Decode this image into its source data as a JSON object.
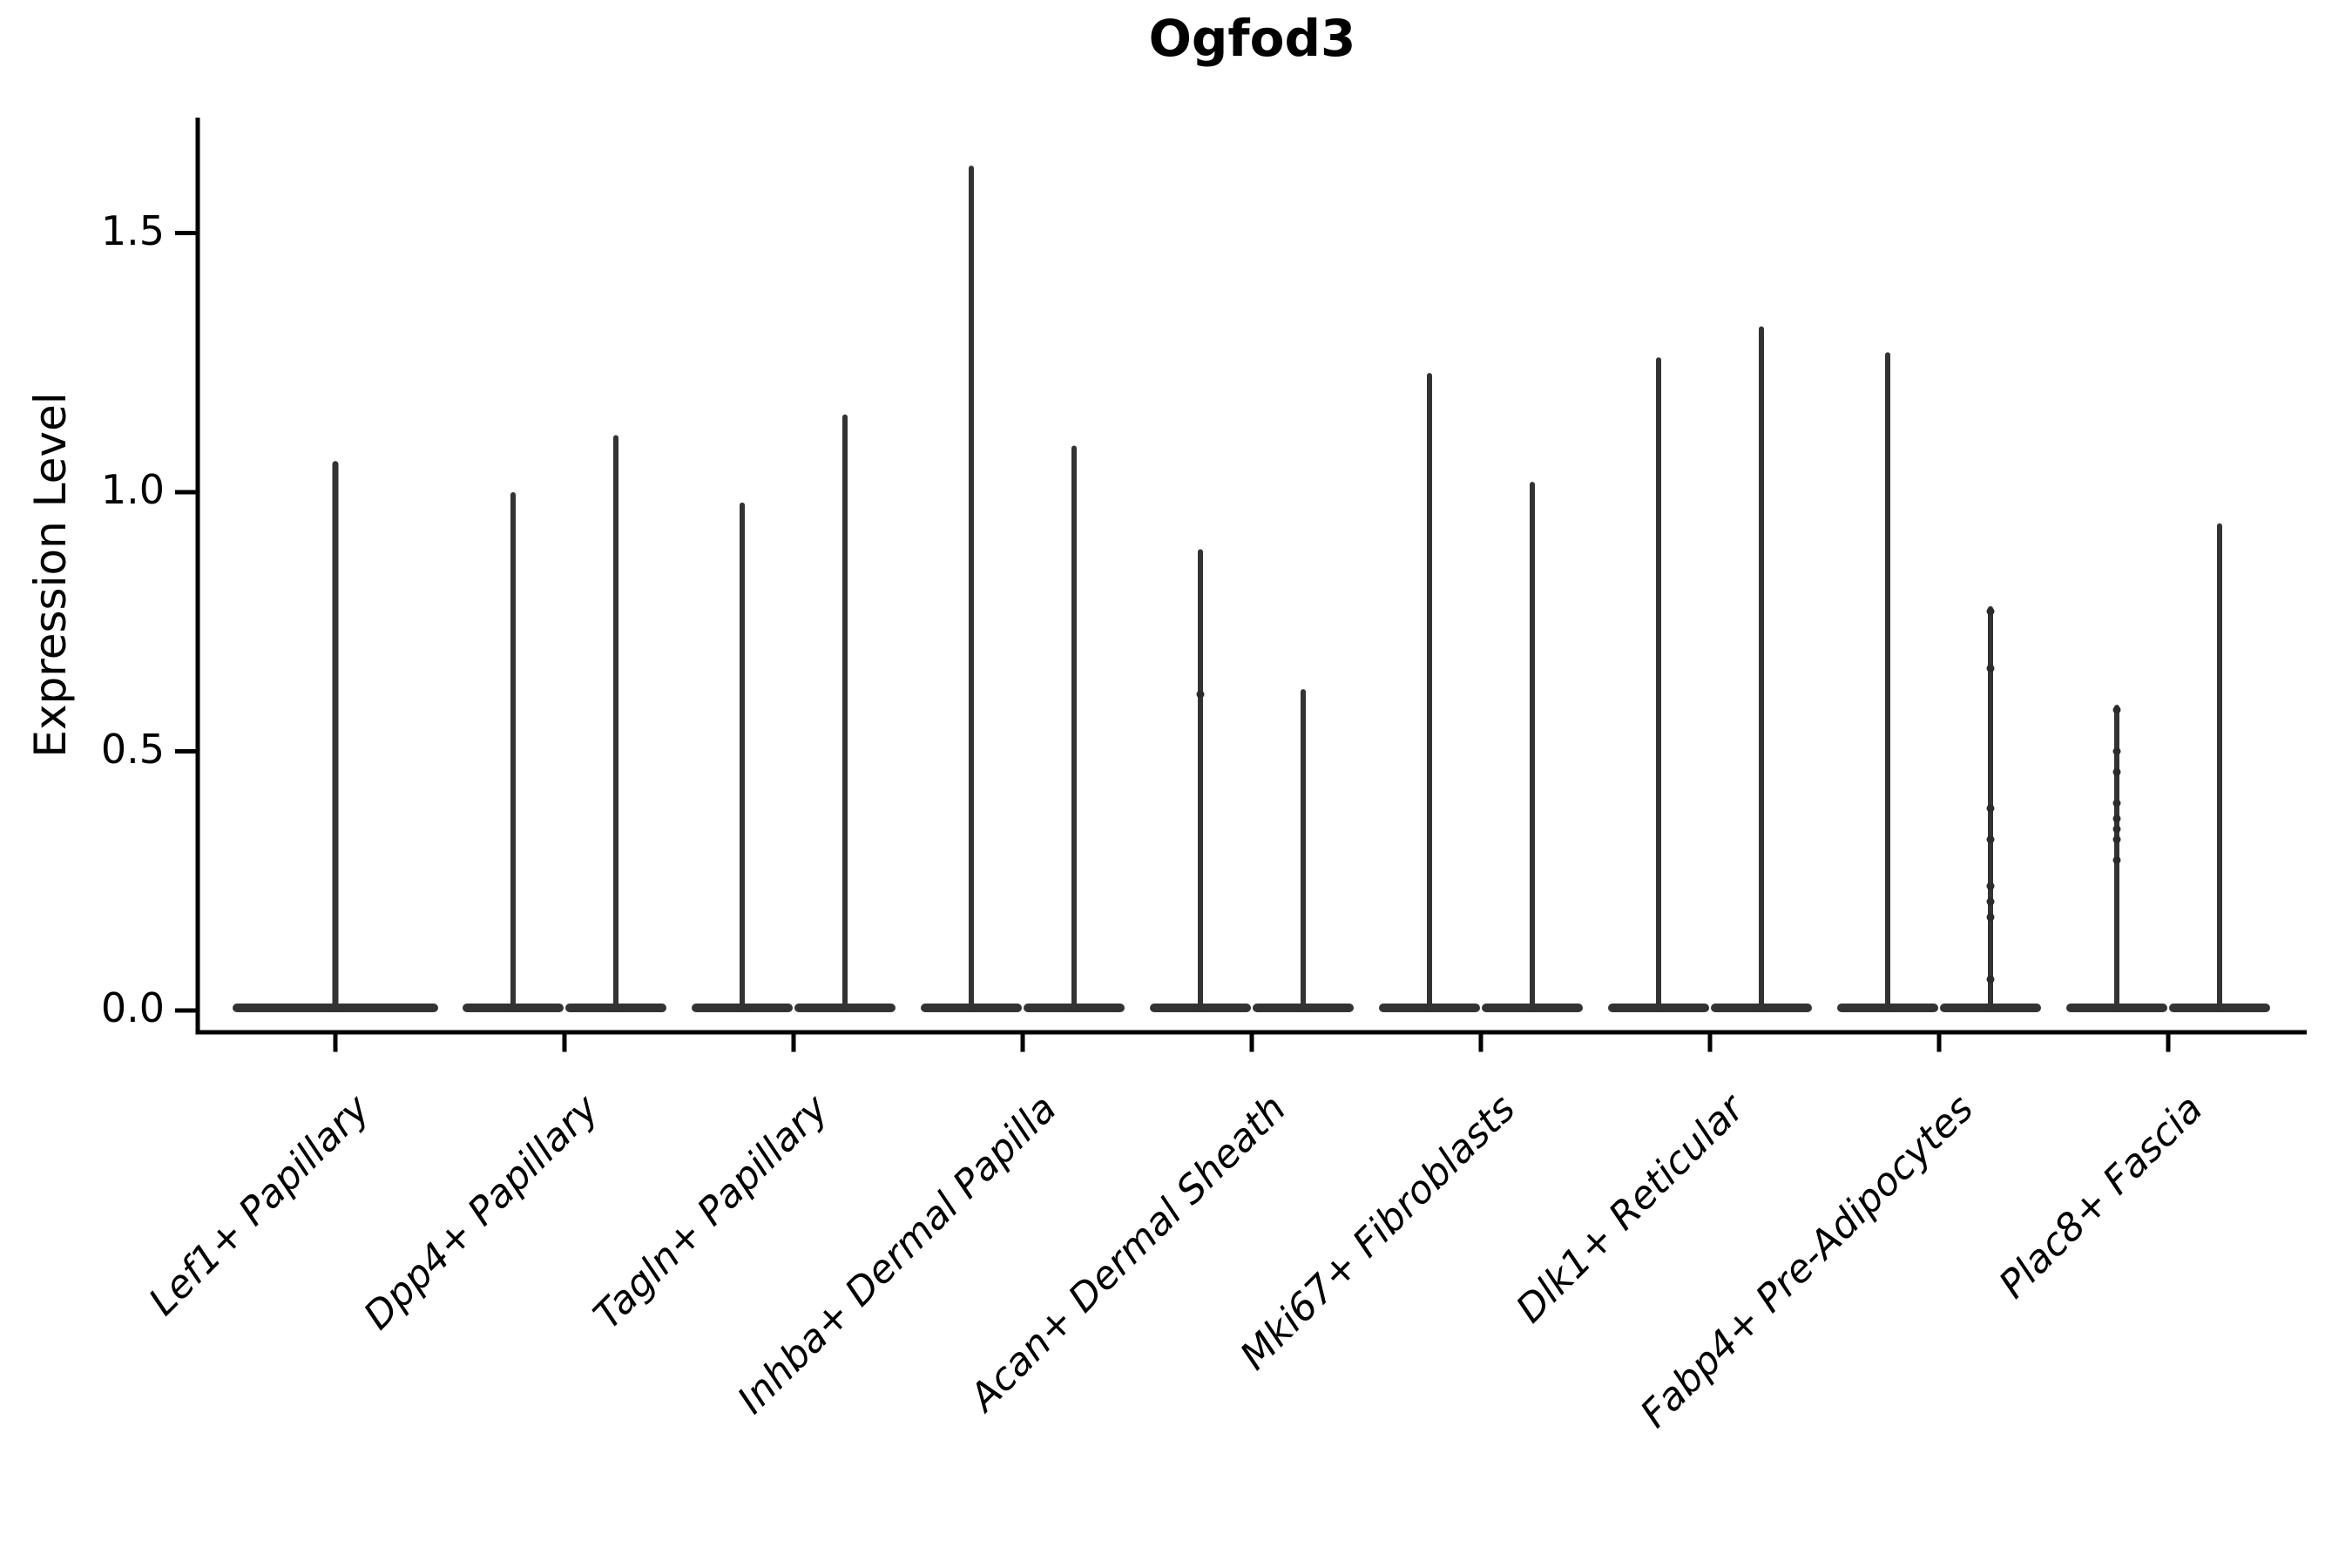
{
  "chart_data": {
    "type": "violin",
    "title": "Ogfod3",
    "ylabel": "Expression Level",
    "xlabel": "",
    "yticks": [
      0.0,
      0.5,
      1.0,
      1.5
    ],
    "ytick_labels": [
      "0.0",
      "0.5",
      "1.0",
      "1.5"
    ],
    "ylim": [
      -0.04,
      1.72
    ],
    "grid": false,
    "legend": "none",
    "violin_color": "#333333",
    "point_color": "#2b2b2b",
    "axis_color": "#000000",
    "categories": [
      "Lef1+ Papillary",
      "Dpp4+ Papillary",
      "Tagln+ Papillary",
      "Inhba+ Dermal Papilla",
      "Acan+ Dermal Sheath",
      "Mki67+ Fibroblasts",
      "Dlk1+ Reticular",
      "Fabp4+ Pre-Adipocytes",
      "Plac8+ Fascia"
    ],
    "violins": [
      {
        "category": "Lef1+ Papillary",
        "group_max_expression": [
          1.06
        ]
      },
      {
        "category": "Dpp4+ Papillary",
        "group_max_expression": [
          1.0,
          1.11
        ]
      },
      {
        "category": "Tagln+ Papillary",
        "group_max_expression": [
          0.98,
          1.15
        ]
      },
      {
        "category": "Inhba+ Dermal Papilla",
        "group_max_expression": [
          1.63,
          1.09
        ]
      },
      {
        "category": "Acan+ Dermal Sheath",
        "group_max_expression": [
          0.89,
          0.62
        ]
      },
      {
        "category": "Mki67+ Fibroblasts",
        "group_max_expression": [
          1.23,
          1.02
        ]
      },
      {
        "category": "Dlk1+ Reticular",
        "group_max_expression": [
          1.26,
          1.32
        ]
      },
      {
        "category": "Fabp4+ Pre-Adipocytes",
        "group_max_expression": [
          1.27,
          0.78
        ]
      },
      {
        "category": "Plac8+ Fascia",
        "group_max_expression": [
          0.59,
          0.94
        ]
      }
    ],
    "visible_points": [
      {
        "category_index": 4,
        "group_index": 0,
        "values": [
          0.61
        ]
      },
      {
        "category_index": 7,
        "group_index": 1,
        "values": [
          0.77,
          0.66,
          0.39,
          0.33,
          0.24,
          0.21,
          0.18,
          0.06
        ]
      },
      {
        "category_index": 8,
        "group_index": 0,
        "values": [
          0.58,
          0.5,
          0.46,
          0.4,
          0.37,
          0.35,
          0.33,
          0.29
        ]
      }
    ],
    "violin_shape_note": "Each violin is extremely narrow: a wide flat base at expression 0 with a thin vertical spike up to the group maximum"
  }
}
